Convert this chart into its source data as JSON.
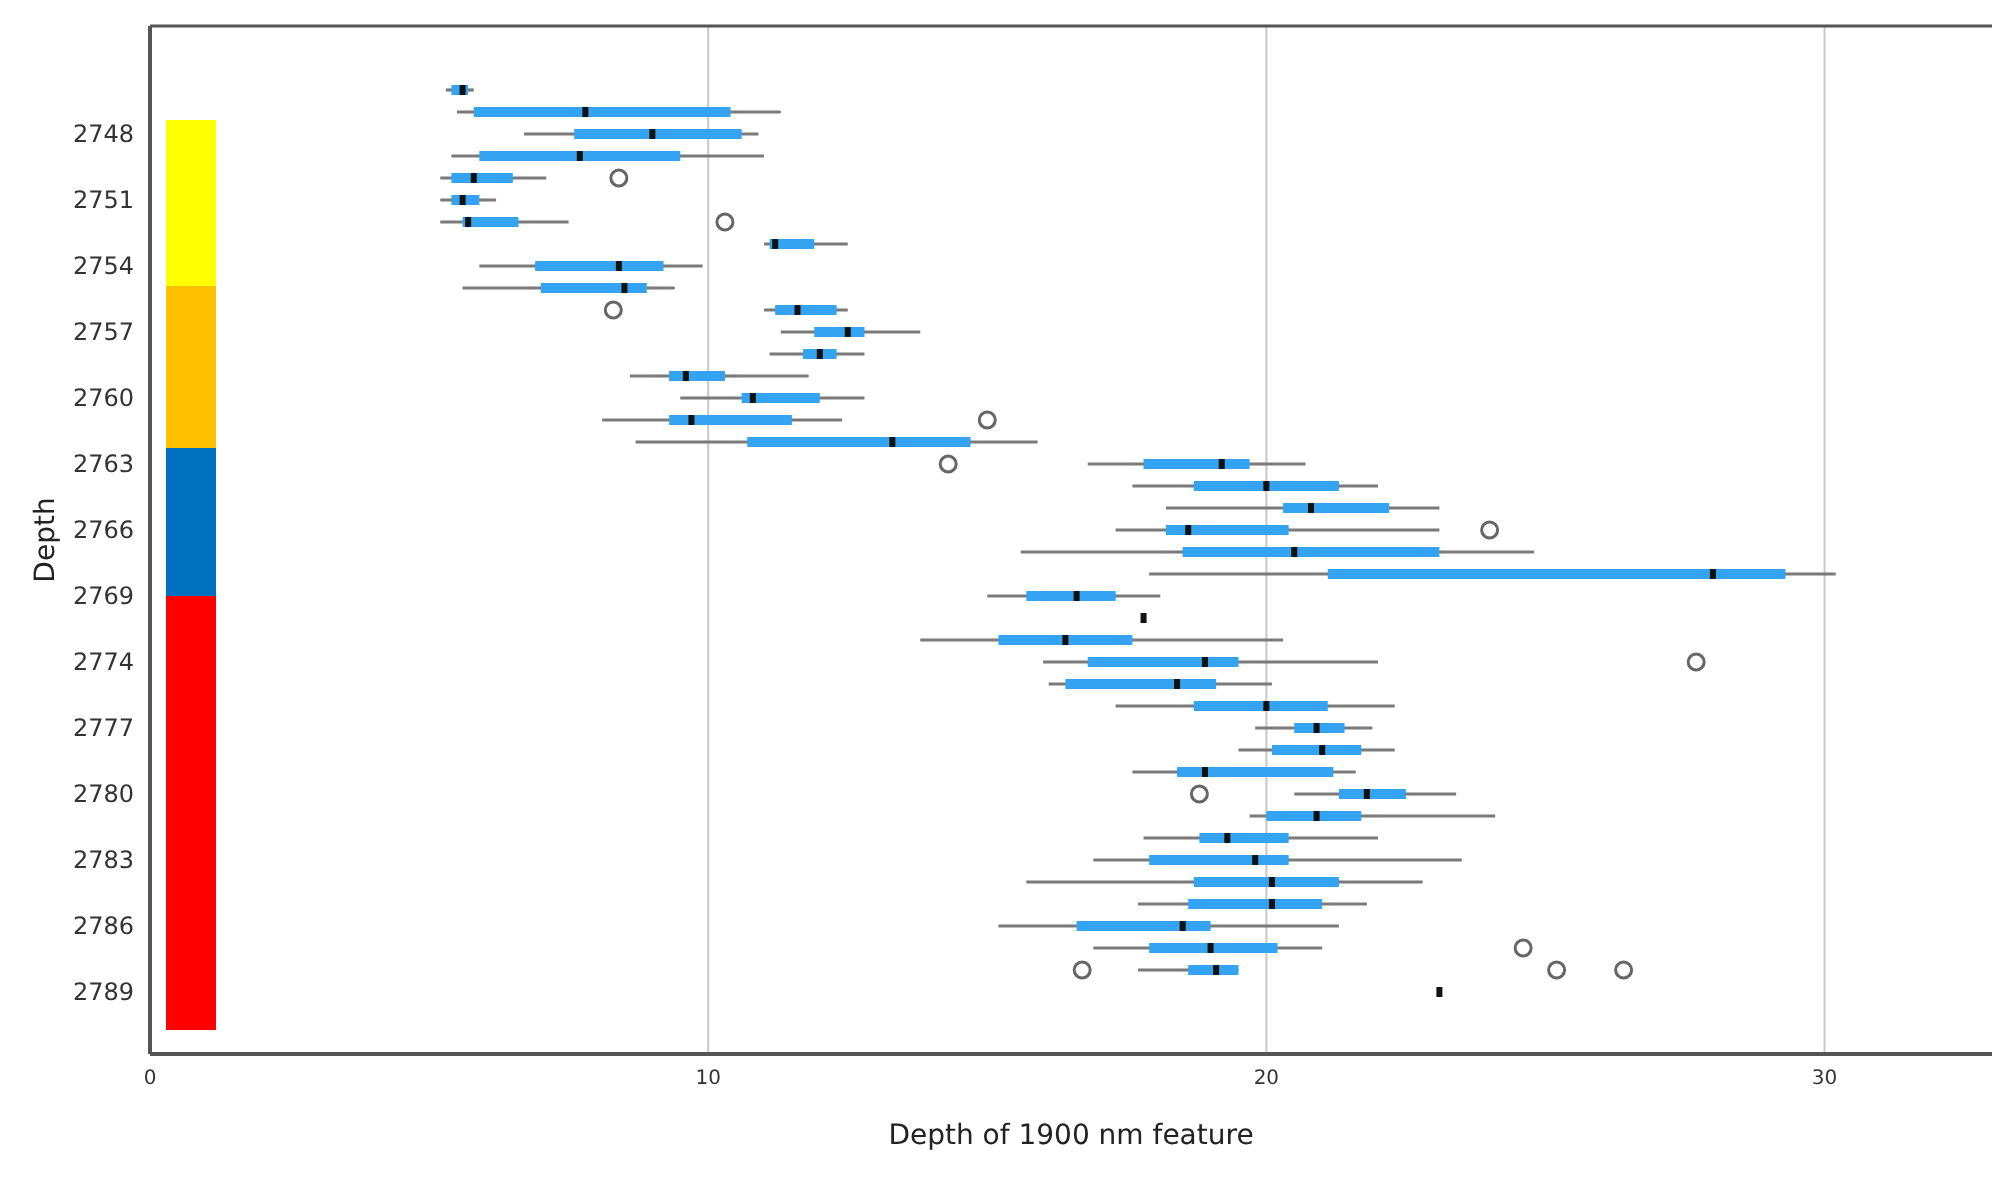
{
  "chart_data": {
    "type": "box",
    "orientation": "horizontal",
    "xlabel": "Depth of 1900 nm feature",
    "ylabel": "Depth",
    "categories": [
      null,
      null,
      "2748",
      null,
      null,
      "2751",
      null,
      null,
      "2754",
      null,
      null,
      "2757",
      null,
      null,
      "2760",
      null,
      null,
      "2763",
      null,
      null,
      "2766",
      null,
      null,
      "2769",
      null,
      null,
      "2774",
      null,
      null,
      "2777",
      null,
      null,
      "2780",
      null,
      null,
      "2783",
      null,
      null,
      "2786",
      null,
      null,
      "2789"
    ],
    "xlim": [
      0,
      33
    ],
    "xticks": [
      0,
      10,
      20,
      30
    ],
    "grid": "x",
    "legend": false,
    "series": [
      {
        "color": "#33a3f2",
        "boxes": [
          {
            "low": 5.3,
            "q1": 5.4,
            "median": 5.6,
            "q3": 5.7,
            "high": 5.8
          },
          {
            "low": 5.5,
            "q1": 5.8,
            "median": 7.8,
            "q3": 10.4,
            "high": 11.3
          },
          {
            "low": 6.7,
            "q1": 7.6,
            "median": 9.0,
            "q3": 10.6,
            "high": 10.9
          },
          {
            "low": 5.4,
            "q1": 5.9,
            "median": 7.7,
            "q3": 9.5,
            "high": 11.0
          },
          {
            "low": 5.2,
            "q1": 5.4,
            "median": 5.8,
            "q3": 6.5,
            "high": 7.1,
            "outliers": [
              8.4
            ]
          },
          {
            "low": 5.2,
            "q1": 5.4,
            "median": 5.6,
            "q3": 5.9,
            "high": 6.2
          },
          {
            "low": 5.2,
            "q1": 5.6,
            "median": 5.7,
            "q3": 6.6,
            "high": 7.5,
            "outliers": [
              10.3
            ]
          },
          {
            "low": 11.0,
            "q1": 11.1,
            "median": 11.2,
            "q3": 11.9,
            "high": 12.5
          },
          {
            "low": 5.9,
            "q1": 6.9,
            "median": 8.4,
            "q3": 9.2,
            "high": 9.9
          },
          {
            "low": 5.6,
            "q1": 7.0,
            "median": 8.5,
            "q3": 8.9,
            "high": 9.4
          },
          {
            "low": 11.0,
            "q1": 11.2,
            "median": 11.6,
            "q3": 12.3,
            "high": 12.5,
            "outliers": [
              8.3
            ]
          },
          {
            "low": 11.3,
            "q1": 11.9,
            "median": 12.5,
            "q3": 12.8,
            "high": 13.8
          },
          {
            "low": 11.1,
            "q1": 11.7,
            "median": 12.0,
            "q3": 12.3,
            "high": 12.8
          },
          {
            "low": 8.6,
            "q1": 9.3,
            "median": 9.6,
            "q3": 10.3,
            "high": 11.8
          },
          {
            "low": 9.5,
            "q1": 10.6,
            "median": 10.8,
            "q3": 12.0,
            "high": 12.8
          },
          {
            "low": 8.1,
            "q1": 9.3,
            "median": 9.7,
            "q3": 11.5,
            "high": 12.4,
            "outliers": [
              15.0
            ]
          },
          {
            "low": 8.7,
            "q1": 10.7,
            "median": 13.3,
            "q3": 14.7,
            "high": 15.9
          },
          {
            "low": 16.8,
            "q1": 17.8,
            "median": 19.2,
            "q3": 19.7,
            "high": 20.7,
            "outliers": [
              14.3
            ]
          },
          {
            "low": 17.6,
            "q1": 18.7,
            "median": 20.0,
            "q3": 21.3,
            "high": 22.0
          },
          {
            "low": 18.2,
            "q1": 20.3,
            "median": 20.8,
            "q3": 22.2,
            "high": 23.1
          },
          {
            "low": 17.3,
            "q1": 18.2,
            "median": 18.6,
            "q3": 20.4,
            "high": 23.1,
            "outliers": [
              24.0
            ]
          },
          {
            "low": 15.6,
            "q1": 18.5,
            "median": 20.5,
            "q3": 23.1,
            "high": 24.8
          },
          {
            "low": 17.9,
            "q1": 21.1,
            "median": 28.0,
            "q3": 29.3,
            "high": 30.2
          },
          {
            "low": 15.0,
            "q1": 15.7,
            "median": 16.6,
            "q3": 17.3,
            "high": 18.1
          },
          {
            "low": 17.8,
            "q1": 17.8,
            "median": 17.8,
            "q3": 17.8,
            "high": 17.8
          },
          {
            "low": 13.8,
            "q1": 15.2,
            "median": 16.4,
            "q3": 17.6,
            "high": 20.3
          },
          {
            "low": 16.0,
            "q1": 16.8,
            "median": 18.9,
            "q3": 19.5,
            "high": 22.0,
            "outliers": [
              27.7
            ]
          },
          {
            "low": 16.1,
            "q1": 16.4,
            "median": 18.4,
            "q3": 19.1,
            "high": 20.1
          },
          {
            "low": 17.3,
            "q1": 18.7,
            "median": 20.0,
            "q3": 21.1,
            "high": 22.3
          },
          {
            "low": 19.8,
            "q1": 20.5,
            "median": 20.9,
            "q3": 21.4,
            "high": 21.9
          },
          {
            "low": 19.5,
            "q1": 20.1,
            "median": 21.0,
            "q3": 21.7,
            "high": 22.3
          },
          {
            "low": 17.6,
            "q1": 18.4,
            "median": 18.9,
            "q3": 21.2,
            "high": 21.6
          },
          {
            "low": 20.5,
            "q1": 21.3,
            "median": 21.8,
            "q3": 22.5,
            "high": 23.4,
            "outliers": [
              18.8
            ]
          },
          {
            "low": 19.7,
            "q1": 20.0,
            "median": 20.9,
            "q3": 21.7,
            "high": 24.1
          },
          {
            "low": 17.8,
            "q1": 18.8,
            "median": 19.3,
            "q3": 20.4,
            "high": 22.0
          },
          {
            "low": 16.9,
            "q1": 17.9,
            "median": 19.8,
            "q3": 20.4,
            "high": 23.5
          },
          {
            "low": 15.7,
            "q1": 18.7,
            "median": 20.1,
            "q3": 21.3,
            "high": 22.8
          },
          {
            "low": 17.7,
            "q1": 18.6,
            "median": 20.1,
            "q3": 21.0,
            "high": 21.8
          },
          {
            "low": 15.2,
            "q1": 16.6,
            "median": 18.5,
            "q3": 19.0,
            "high": 21.3
          },
          {
            "low": 16.9,
            "q1": 17.9,
            "median": 19.0,
            "q3": 20.2,
            "high": 21.0,
            "outliers": [
              24.6
            ]
          },
          {
            "low": 17.7,
            "q1": 18.6,
            "median": 19.1,
            "q3": 19.5,
            "high": 19.5,
            "outliers": [
              16.7,
              25.2,
              26.4
            ]
          },
          {
            "low": 23.1,
            "q1": 23.1,
            "median": 23.1,
            "q3": 23.1,
            "high": 23.1
          }
        ]
      }
    ]
  }
}
